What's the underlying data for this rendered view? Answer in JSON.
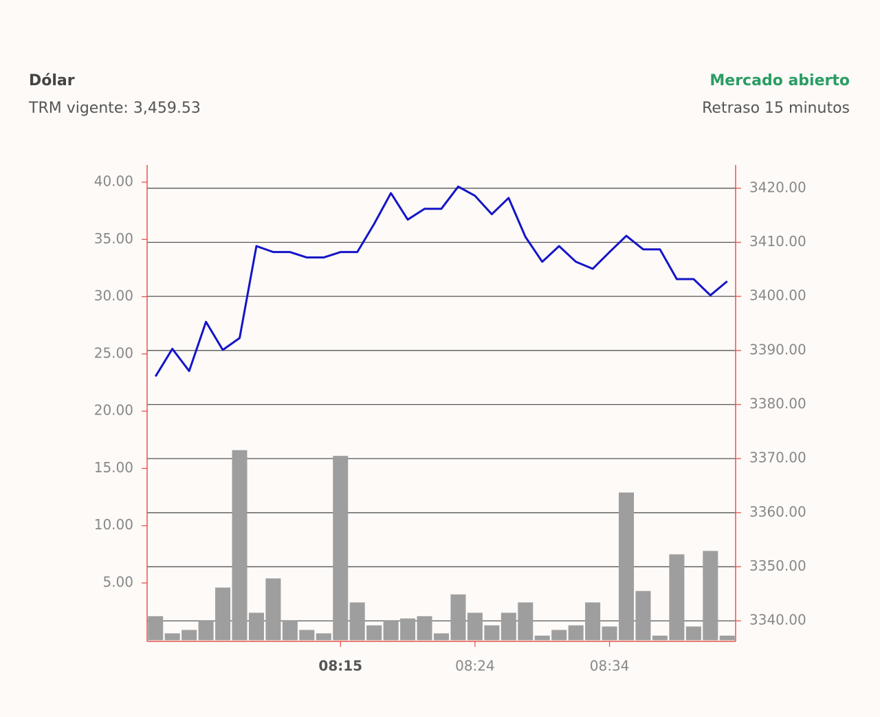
{
  "header": {
    "title": "Dólar",
    "subtitle": "TRM vigente: 3,459.53",
    "status": "Mercado abierto",
    "delay": "Retraso 15 minutos"
  },
  "chart_data": {
    "type": "combo",
    "categories": [
      null,
      null,
      null,
      null,
      null,
      null,
      null,
      null,
      null,
      null,
      null,
      "08:15",
      null,
      null,
      null,
      null,
      null,
      null,
      null,
      "08:24",
      null,
      null,
      null,
      null,
      null,
      null,
      null,
      "08:34",
      null,
      null,
      null,
      null,
      null,
      null,
      null
    ],
    "series": [
      {
        "type": "bar",
        "color": "#9e9e9e",
        "values": [
          2.1,
          0.6,
          0.9,
          1.7,
          4.6,
          16.6,
          2.4,
          5.4,
          1.7,
          0.9,
          0.6,
          16.1,
          3.3,
          1.3,
          1.7,
          1.9,
          2.1,
          0.6,
          4.0,
          2.4,
          1.3,
          2.4,
          3.3,
          0.4,
          0.9,
          1.3,
          3.3,
          1.2,
          12.9,
          4.3,
          0.4,
          7.5,
          1.2,
          7.8,
          0.4
        ]
      },
      {
        "type": "line",
        "axis": "y2",
        "color": "#1414c8",
        "values": [
          3385.2,
          3390.3,
          3386.2,
          3395.3,
          3390.1,
          3392.3,
          3409.3,
          3408.2,
          3408.2,
          3407.2,
          3407.2,
          3408.2,
          3408.2,
          3413.4,
          3419.1,
          3414.2,
          3416.2,
          3416.2,
          3420.3,
          3418.6,
          3415.2,
          3418.2,
          3411.0,
          3406.4,
          3409.3,
          3406.4,
          3405.1,
          3408.2,
          3411.2,
          3408.7,
          3408.7,
          3403.2,
          3403.2,
          3400.2,
          3402.8
        ]
      }
    ],
    "ylim": [
      -0.1,
      41.5
    ],
    "yticks": [
      {
        "value": 5,
        "label": "5.00"
      },
      {
        "value": 10,
        "label": "10.00"
      },
      {
        "value": 15,
        "label": "15.00"
      },
      {
        "value": 20,
        "label": "20.00"
      },
      {
        "value": 25,
        "label": "25.00"
      },
      {
        "value": 30,
        "label": "30.00"
      },
      {
        "value": 35,
        "label": "35.00"
      },
      {
        "value": 40,
        "label": "40.00"
      }
    ],
    "y2lim": [
      3336.2,
      3424.3
    ],
    "y2ticks": [
      {
        "value": 3340,
        "label": "3340.00"
      },
      {
        "value": 3350,
        "label": "3350.00"
      },
      {
        "value": 3360,
        "label": "3360.00"
      },
      {
        "value": 3370,
        "label": "3370.00"
      },
      {
        "value": 3380,
        "label": "3380.00"
      },
      {
        "value": 3390,
        "label": "3390.00"
      },
      {
        "value": 3400,
        "label": "3400.00"
      },
      {
        "value": 3410,
        "label": "3410.00"
      },
      {
        "value": 3420,
        "label": "3420.00"
      }
    ],
    "grid": true,
    "axis_color": "#e8534a"
  }
}
